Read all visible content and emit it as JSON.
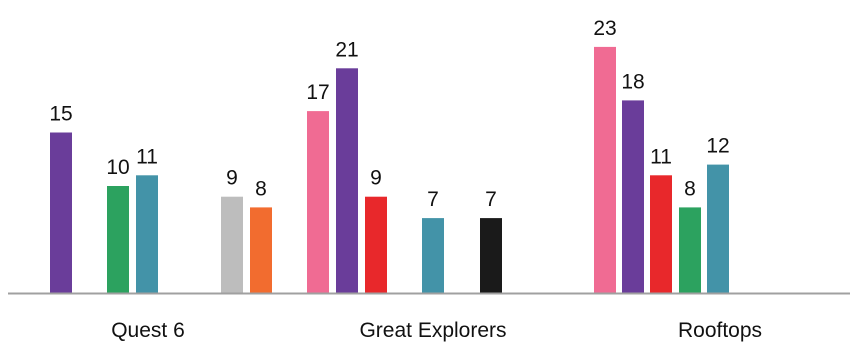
{
  "chart_data": {
    "type": "bar",
    "categories": [
      "Quest 6",
      "Great Explorers",
      "Rooftops"
    ],
    "grid": false,
    "legend": "none",
    "ylim": [
      0,
      25
    ],
    "groups": [
      {
        "category": "Quest 6",
        "bars": [
          {
            "value": 15,
            "color": "#6a3d9a"
          },
          {
            "value": 10,
            "color": "#2ca25f"
          },
          {
            "value": 11,
            "color": "#4393a8"
          },
          {
            "value": 9,
            "color": "#bdbdbd"
          },
          {
            "value": 8,
            "color": "#f26c2f"
          }
        ]
      },
      {
        "category": "Great Explorers",
        "bars": [
          {
            "value": 17,
            "color": "#f06b93"
          },
          {
            "value": 21,
            "color": "#6a3d9a"
          },
          {
            "value": 9,
            "color": "#e8282b"
          },
          {
            "value": 7,
            "color": "#4393a8"
          },
          {
            "value": 7,
            "color": "#1a1a1a"
          }
        ]
      },
      {
        "category": "Rooftops",
        "bars": [
          {
            "value": 23,
            "color": "#f06b93"
          },
          {
            "value": 18,
            "color": "#6a3d9a"
          },
          {
            "value": 11,
            "color": "#e8282b"
          },
          {
            "value": 8,
            "color": "#2ca25f"
          },
          {
            "value": 12,
            "color": "#4393a8"
          }
        ]
      }
    ],
    "axis_color": "#a0a0a0"
  }
}
